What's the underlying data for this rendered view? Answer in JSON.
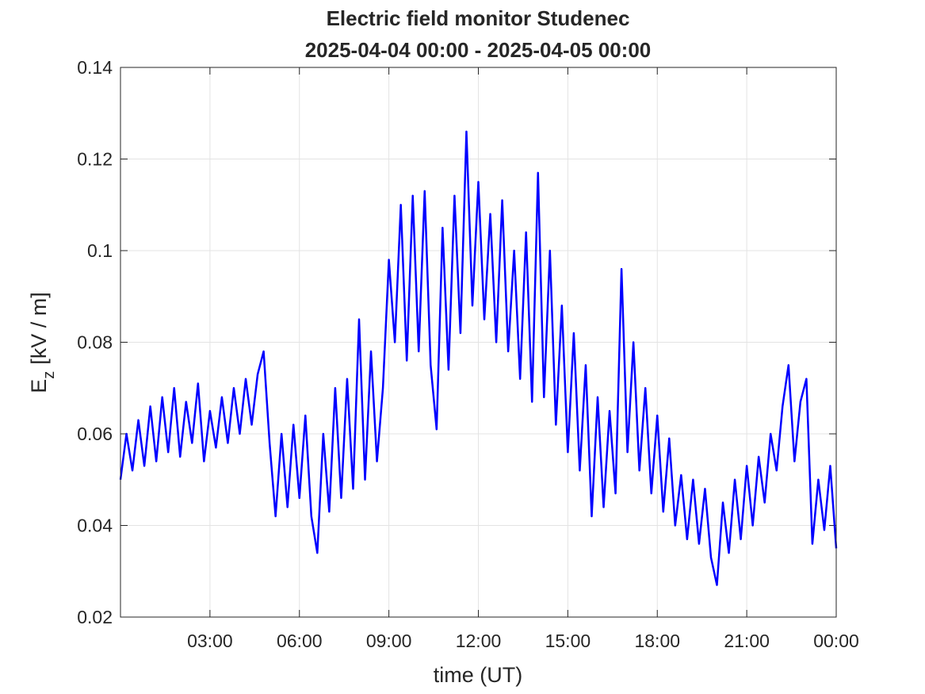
{
  "chart_data": {
    "type": "line",
    "title": "Electric field monitor Studenec",
    "subtitle": "2025-04-04 00:00 - 2025-04-05 00:00",
    "xlabel": "time (UT)",
    "ylabel": {
      "main": "E",
      "sub": "z",
      "unit": "[kV / m]"
    },
    "xlim": [
      0,
      24
    ],
    "ylim": [
      0.02,
      0.14
    ],
    "xticks": [
      {
        "value": 3,
        "label": "03:00"
      },
      {
        "value": 6,
        "label": "06:00"
      },
      {
        "value": 9,
        "label": "09:00"
      },
      {
        "value": 12,
        "label": "12:00"
      },
      {
        "value": 15,
        "label": "15:00"
      },
      {
        "value": 18,
        "label": "18:00"
      },
      {
        "value": 21,
        "label": "21:00"
      },
      {
        "value": 24,
        "label": "00:00"
      }
    ],
    "yticks": [
      0.02,
      0.04,
      0.06,
      0.08,
      0.1,
      0.12,
      0.14
    ],
    "grid": true,
    "x": [
      0,
      0.2,
      0.4,
      0.6,
      0.8,
      1,
      1.2,
      1.4,
      1.6,
      1.8,
      2,
      2.2,
      2.4,
      2.6,
      2.8,
      3,
      3.2,
      3.4,
      3.6,
      3.8,
      4,
      4.2,
      4.4,
      4.6,
      4.8,
      5,
      5.2,
      5.4,
      5.6,
      5.8,
      6,
      6.2,
      6.4,
      6.6,
      6.8,
      7,
      7.2,
      7.4,
      7.6,
      7.8,
      8,
      8.2,
      8.4,
      8.6,
      8.8,
      9,
      9.2,
      9.4,
      9.6,
      9.8,
      10,
      10.2,
      10.4,
      10.6,
      10.8,
      11,
      11.2,
      11.4,
      11.6,
      11.8,
      12,
      12.2,
      12.4,
      12.6,
      12.8,
      13,
      13.2,
      13.4,
      13.6,
      13.8,
      14,
      14.2,
      14.4,
      14.6,
      14.8,
      15,
      15.2,
      15.4,
      15.6,
      15.8,
      16,
      16.2,
      16.4,
      16.6,
      16.8,
      17,
      17.2,
      17.4,
      17.6,
      17.8,
      18,
      18.2,
      18.4,
      18.6,
      18.8,
      19,
      19.2,
      19.4,
      19.6,
      19.8,
      20,
      20.2,
      20.4,
      20.6,
      20.8,
      21,
      21.2,
      21.4,
      21.6,
      21.8,
      22,
      22.2,
      22.4,
      22.6,
      22.8,
      23,
      23.2,
      23.4,
      23.6,
      23.8,
      24
    ],
    "series": [
      {
        "color": "#0000ff",
        "values": [
          0.05,
          0.06,
          0.052,
          0.063,
          0.053,
          0.066,
          0.054,
          0.068,
          0.056,
          0.07,
          0.055,
          0.067,
          0.058,
          0.071,
          0.054,
          0.065,
          0.057,
          0.068,
          0.058,
          0.07,
          0.06,
          0.072,
          0.062,
          0.073,
          0.078,
          0.058,
          0.042,
          0.06,
          0.044,
          0.062,
          0.046,
          0.064,
          0.042,
          0.034,
          0.06,
          0.043,
          0.07,
          0.046,
          0.072,
          0.048,
          0.085,
          0.05,
          0.078,
          0.054,
          0.07,
          0.098,
          0.08,
          0.11,
          0.076,
          0.112,
          0.078,
          0.113,
          0.075,
          0.061,
          0.105,
          0.074,
          0.112,
          0.082,
          0.126,
          0.088,
          0.115,
          0.085,
          0.108,
          0.08,
          0.111,
          0.078,
          0.1,
          0.072,
          0.104,
          0.067,
          0.117,
          0.068,
          0.1,
          0.062,
          0.088,
          0.056,
          0.082,
          0.052,
          0.075,
          0.042,
          0.068,
          0.044,
          0.065,
          0.047,
          0.096,
          0.056,
          0.08,
          0.052,
          0.07,
          0.047,
          0.064,
          0.043,
          0.059,
          0.04,
          0.051,
          0.037,
          0.05,
          0.036,
          0.048,
          0.033,
          0.027,
          0.045,
          0.034,
          0.05,
          0.037,
          0.053,
          0.04,
          0.055,
          0.045,
          0.06,
          0.052,
          0.066,
          0.075,
          0.054,
          0.067,
          0.072,
          0.036,
          0.05,
          0.039,
          0.053,
          0.035
        ]
      }
    ]
  }
}
